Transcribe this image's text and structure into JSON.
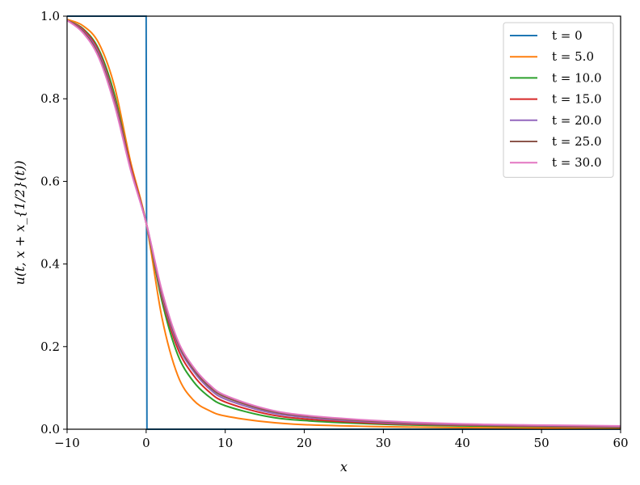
{
  "chart_data": {
    "type": "line",
    "title": "",
    "xlabel": "x",
    "ylabel": "u(t, x + x_{1/2}(t))",
    "xlim": [
      -10,
      60
    ],
    "ylim": [
      0,
      1
    ],
    "xticks": [
      -10,
      0,
      10,
      20,
      30,
      40,
      50,
      60
    ],
    "xtick_labels": [
      "−10",
      "0",
      "10",
      "20",
      "30",
      "40",
      "50",
      "60"
    ],
    "yticks": [
      0,
      0.2,
      0.4,
      0.6,
      0.8,
      1.0
    ],
    "ytick_labels": [
      "0.0",
      "0.2",
      "0.4",
      "0.6",
      "0.8",
      "1.0"
    ],
    "grid": false,
    "legend_position": "top-right",
    "x": [
      -10,
      -8,
      -6,
      -4,
      -2,
      0,
      2,
      4,
      6,
      8,
      10,
      15,
      20,
      30,
      40,
      50,
      60
    ],
    "series": [
      {
        "name": "t = 0",
        "color": "#1f77b4",
        "type": "step",
        "x": [
          -10,
          0,
          0.1,
          60
        ],
        "values": [
          1.0,
          1.0,
          0.0,
          0.0
        ]
      },
      {
        "name": "t = 5.0",
        "color": "#ff7f0e",
        "values": [
          0.992,
          0.977,
          0.935,
          0.83,
          0.65,
          0.5,
          0.27,
          0.13,
          0.07,
          0.045,
          0.032,
          0.018,
          0.011,
          0.006,
          0.004,
          0.003,
          0.002
        ]
      },
      {
        "name": "t = 10.0",
        "color": "#2ca02c",
        "values": [
          0.99,
          0.97,
          0.92,
          0.81,
          0.64,
          0.5,
          0.31,
          0.18,
          0.115,
          0.078,
          0.057,
          0.032,
          0.021,
          0.012,
          0.008,
          0.006,
          0.004
        ]
      },
      {
        "name": "t = 15.0",
        "color": "#d62728",
        "values": [
          0.99,
          0.968,
          0.915,
          0.8,
          0.64,
          0.5,
          0.32,
          0.195,
          0.13,
          0.09,
          0.066,
          0.038,
          0.025,
          0.014,
          0.01,
          0.007,
          0.005
        ]
      },
      {
        "name": "t = 20.0",
        "color": "#9467bd",
        "values": [
          0.99,
          0.965,
          0.91,
          0.795,
          0.635,
          0.5,
          0.325,
          0.205,
          0.14,
          0.098,
          0.073,
          0.043,
          0.029,
          0.016,
          0.011,
          0.008,
          0.006
        ]
      },
      {
        "name": "t = 25.0",
        "color": "#8c564b",
        "values": [
          0.99,
          0.963,
          0.905,
          0.79,
          0.633,
          0.5,
          0.33,
          0.21,
          0.145,
          0.103,
          0.078,
          0.047,
          0.032,
          0.018,
          0.012,
          0.009,
          0.007
        ]
      },
      {
        "name": "t = 30.0",
        "color": "#e377c2",
        "values": [
          0.99,
          0.96,
          0.9,
          0.785,
          0.63,
          0.5,
          0.335,
          0.215,
          0.15,
          0.108,
          0.082,
          0.05,
          0.034,
          0.02,
          0.013,
          0.01,
          0.008
        ]
      }
    ]
  }
}
